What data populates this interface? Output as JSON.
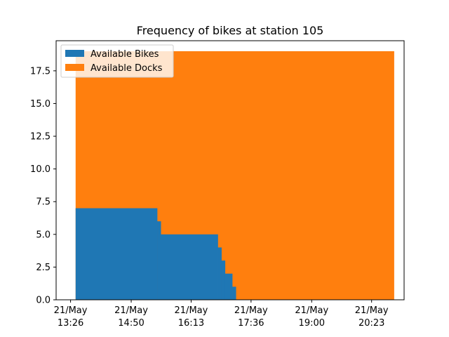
{
  "chart_data": {
    "type": "area",
    "title": "Frequency of bikes at station 105",
    "xlabel": "",
    "ylabel": "",
    "x_range": [
      "21/May 13:06",
      "21/May 21:08"
    ],
    "ylim": [
      0,
      19.8
    ],
    "grid": false,
    "legend_position": "top-left",
    "x_ticks": [
      {
        "value": "21/May 13:26",
        "line1": "21/May",
        "line2": "13:26"
      },
      {
        "value": "21/May 14:50",
        "line1": "21/May",
        "line2": "14:50"
      },
      {
        "value": "21/May 16:13",
        "line1": "21/May",
        "line2": "16:13"
      },
      {
        "value": "21/May 17:36",
        "line1": "21/May",
        "line2": "17:36"
      },
      {
        "value": "21/May 19:00",
        "line1": "21/May",
        "line2": "19:00"
      },
      {
        "value": "21/May 20:23",
        "line1": "21/May",
        "line2": "20:23"
      }
    ],
    "y_ticks": [
      {
        "value": 0,
        "label": "0.0"
      },
      {
        "value": 2.5,
        "label": "2.5"
      },
      {
        "value": 5,
        "label": "5.0"
      },
      {
        "value": 7.5,
        "label": "7.5"
      },
      {
        "value": 10,
        "label": "10.0"
      },
      {
        "value": 12.5,
        "label": "12.5"
      },
      {
        "value": 15,
        "label": "15.0"
      },
      {
        "value": 17.5,
        "label": "17.5"
      }
    ],
    "series": [
      {
        "name": "Available Bikes",
        "color": "#1f77b4",
        "steps": [
          {
            "start": "21/May 13:33",
            "end": "21/May 15:26",
            "value": 7
          },
          {
            "start": "21/May 15:26",
            "end": "21/May 15:31",
            "value": 6
          },
          {
            "start": "21/May 15:31",
            "end": "21/May 16:50",
            "value": 5
          },
          {
            "start": "21/May 16:50",
            "end": "21/May 16:55",
            "value": 4
          },
          {
            "start": "21/May 16:55",
            "end": "21/May 17:00",
            "value": 3
          },
          {
            "start": "21/May 17:00",
            "end": "21/May 17:10",
            "value": 2
          },
          {
            "start": "21/May 17:10",
            "end": "21/May 17:15",
            "value": 1
          }
        ]
      },
      {
        "name": "Available Docks",
        "color": "#ff7f0e",
        "steps": [
          {
            "start": "21/May 13:33",
            "end": "21/May 20:54",
            "value": 19
          }
        ]
      }
    ]
  }
}
